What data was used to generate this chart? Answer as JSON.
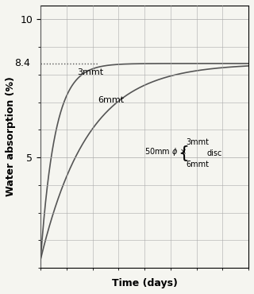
{
  "title": "",
  "xlabel": "Time (days)",
  "ylabel": "Water absorption (%)",
  "ylim": [
    1.0,
    10.5
  ],
  "xlim": [
    0,
    80
  ],
  "yticks": [
    5,
    10
  ],
  "ytick_labels": [
    "5",
    "10"
  ],
  "saturation_level": 8.4,
  "dotted_line_y": 8.4,
  "dotted_line_label": "8.4",
  "curve_color": "#555555",
  "grid_color": "#aaaaaa",
  "background_color": "#f5f5f0",
  "label_3mmt": "3mmt",
  "label_6mmt": "6mmt",
  "annotation_text_line1": "50mm φ ×",
  "annotation_brace": "{",
  "annotation_3mmt": "3mmt",
  "annotation_6mmt": "6mmt",
  "annotation_disc": "disc"
}
